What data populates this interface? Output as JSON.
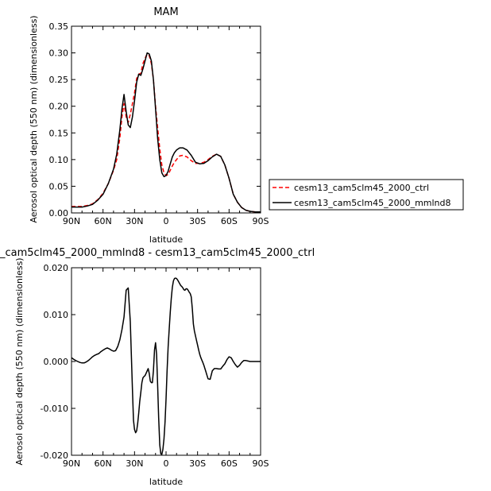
{
  "chart_data": [
    {
      "type": "line",
      "title": "MAM",
      "xlabel": "latitude",
      "ylabel": "Aerosol optical depth (550 nm) (dimensionless)",
      "xlim": [
        90,
        -90
      ],
      "ylim": [
        0,
        0.35
      ],
      "xticks": [
        90,
        60,
        30,
        0,
        -30,
        -60,
        -90
      ],
      "xtick_labels": [
        "90N",
        "60N",
        "30N",
        "0",
        "30S",
        "60S",
        "90S"
      ],
      "yticks": [
        0,
        0.05,
        0.1,
        0.15,
        0.2,
        0.25,
        0.3,
        0.35
      ],
      "ytick_labels": [
        "0.00",
        "0.05",
        "0.10",
        "0.15",
        "0.20",
        "0.25",
        "0.30",
        "0.35"
      ],
      "legend_position": "right",
      "series": [
        {
          "name": "cesm13_cam5clm45_2000_ctrl",
          "color": "#ff0000",
          "dash": "dashed",
          "x": [
            90,
            85,
            80,
            75,
            70,
            65,
            60,
            55,
            50,
            47,
            44,
            42,
            40,
            38,
            36,
            34,
            32,
            30,
            28,
            26,
            24,
            22,
            20,
            18,
            16,
            14,
            12,
            10,
            8,
            6,
            4,
            2,
            0,
            -2,
            -4,
            -6,
            -8,
            -10,
            -13,
            -16,
            -20,
            -24,
            -28,
            -32,
            -36,
            -40,
            -44,
            -48,
            -52,
            -56,
            -60,
            -64,
            -68,
            -72,
            -76,
            -80,
            -85,
            -90
          ],
          "y": [
            0.012,
            0.012,
            0.012,
            0.014,
            0.017,
            0.025,
            0.037,
            0.055,
            0.08,
            0.1,
            0.14,
            0.18,
            0.205,
            0.18,
            0.17,
            0.185,
            0.205,
            0.225,
            0.252,
            0.26,
            0.262,
            0.28,
            0.29,
            0.298,
            0.295,
            0.28,
            0.25,
            0.2,
            0.16,
            0.12,
            0.09,
            0.075,
            0.07,
            0.072,
            0.08,
            0.088,
            0.095,
            0.1,
            0.107,
            0.108,
            0.105,
            0.098,
            0.093,
            0.093,
            0.095,
            0.1,
            0.106,
            0.11,
            0.106,
            0.09,
            0.065,
            0.035,
            0.02,
            0.01,
            0.005,
            0.003,
            0.002,
            0.002
          ]
        },
        {
          "name": "cesm13_cam5clm45_2000_mmlnd8",
          "color": "#000000",
          "dash": "solid",
          "x": [
            90,
            85,
            80,
            75,
            70,
            65,
            60,
            55,
            50,
            47,
            44,
            42,
            40,
            38,
            36,
            34,
            32,
            30,
            28,
            26,
            24,
            22,
            20,
            18,
            16,
            14,
            12,
            10,
            8,
            6,
            4,
            2,
            0,
            -2,
            -4,
            -6,
            -8,
            -10,
            -13,
            -16,
            -20,
            -24,
            -28,
            -32,
            -36,
            -40,
            -44,
            -48,
            -52,
            -56,
            -60,
            -64,
            -68,
            -72,
            -76,
            -80,
            -85,
            -90
          ],
          "y": [
            0.011,
            0.011,
            0.011,
            0.013,
            0.016,
            0.024,
            0.035,
            0.055,
            0.082,
            0.11,
            0.155,
            0.195,
            0.222,
            0.19,
            0.165,
            0.16,
            0.18,
            0.21,
            0.245,
            0.26,
            0.258,
            0.27,
            0.285,
            0.3,
            0.298,
            0.285,
            0.25,
            0.195,
            0.14,
            0.1,
            0.075,
            0.068,
            0.07,
            0.078,
            0.092,
            0.105,
            0.113,
            0.118,
            0.122,
            0.122,
            0.118,
            0.108,
            0.095,
            0.092,
            0.093,
            0.098,
            0.105,
            0.11,
            0.106,
            0.09,
            0.065,
            0.035,
            0.02,
            0.01,
            0.005,
            0.003,
            0.002,
            0.002
          ]
        }
      ]
    },
    {
      "type": "line",
      "title": "_cam5clm45_2000_mmlnd8 - cesm13_cam5clm45_2000_ctrl",
      "xlabel": "latitude",
      "ylabel": "Aerosol optical depth (550 nm) (dimensionless)",
      "xlim": [
        90,
        -90
      ],
      "ylim": [
        -0.02,
        0.02
      ],
      "xticks": [
        90,
        60,
        30,
        0,
        -30,
        -60,
        -90
      ],
      "xtick_labels": [
        "90N",
        "60N",
        "30N",
        "0",
        "30S",
        "60S",
        "90S"
      ],
      "yticks": [
        -0.02,
        -0.01,
        0,
        0.01,
        0.02
      ],
      "ytick_labels": [
        "-0.020",
        "-0.010",
        "0.000",
        "0.010",
        "0.020"
      ],
      "series": [
        {
          "color": "#000000",
          "dash": "solid",
          "x": [
            90,
            88,
            86,
            84,
            82,
            80,
            78,
            76,
            74,
            72,
            70,
            68,
            66,
            64,
            62,
            60,
            58,
            56,
            54,
            52,
            50,
            48,
            46,
            44,
            42,
            40,
            38,
            36,
            34,
            33,
            32,
            31,
            30,
            29,
            28,
            27,
            26,
            25,
            24,
            23,
            22,
            21,
            20,
            19,
            18,
            17,
            16,
            15,
            14,
            13,
            12,
            11,
            10,
            9,
            8,
            7,
            6,
            5,
            4,
            3,
            2,
            1,
            0,
            -1,
            -2,
            -3,
            -4,
            -5,
            -6,
            -7,
            -8,
            -9,
            -10,
            -11,
            -12,
            -13,
            -14,
            -15,
            -16,
            -17,
            -18,
            -19,
            -20,
            -21,
            -22,
            -23,
            -24,
            -25,
            -26,
            -27,
            -28,
            -29,
            -30,
            -31,
            -32,
            -33,
            -34,
            -35,
            -36,
            -37,
            -38,
            -39,
            -40,
            -42,
            -44,
            -46,
            -48,
            -50,
            -52,
            -54,
            -56,
            -58,
            -60,
            -62,
            -64,
            -66,
            -68,
            -70,
            -72,
            -74,
            -76,
            -78,
            -80,
            -85,
            -90
          ],
          "y": [
            0.0008,
            0.0005,
            0.0002,
            0,
            -0.0002,
            -0.0003,
            -0.0003,
            -0.0001,
            0.0002,
            0.0006,
            0.001,
            0.0013,
            0.0015,
            0.0017,
            0.0021,
            0.0024,
            0.0027,
            0.0029,
            0.0027,
            0.0024,
            0.0022,
            0.0023,
            0.0032,
            0.0046,
            0.0068,
            0.0095,
            0.0152,
            0.0157,
            0.0085,
            0.001,
            -0.006,
            -0.0125,
            -0.0145,
            -0.0152,
            -0.0148,
            -0.0132,
            -0.011,
            -0.0085,
            -0.0065,
            -0.0045,
            -0.0035,
            -0.0032,
            -0.003,
            -0.0025,
            -0.002,
            -0.0015,
            -0.0025,
            -0.0042,
            -0.0045,
            -0.0045,
            -0.002,
            0.0025,
            0.004,
            0.0015,
            -0.005,
            -0.012,
            -0.0178,
            -0.0197,
            -0.0198,
            -0.0188,
            -0.0165,
            -0.013,
            -0.008,
            -0.002,
            0.003,
            0.007,
            0.0105,
            0.0135,
            0.0158,
            0.0172,
            0.0177,
            0.0178,
            0.0177,
            0.0174,
            0.017,
            0.0166,
            0.0162,
            0.016,
            0.0157,
            0.0153,
            0.0152,
            0.0155,
            0.0155,
            0.0152,
            0.0148,
            0.0145,
            0.0138,
            0.0112,
            0.008,
            0.0065,
            0.0055,
            0.0045,
            0.0035,
            0.0025,
            0.0016,
            0.0009,
            0.0003,
            -0.0002,
            -0.0008,
            -0.0015,
            -0.0022,
            -0.003,
            -0.0037,
            -0.0038,
            -0.002,
            -0.0015,
            -0.0015,
            -0.0016,
            -0.0016,
            -0.001,
            -0.0005,
            0.0004,
            0.001,
            0.0008,
            0,
            -0.0007,
            -0.0012,
            -0.0008,
            -0.0002,
            0.0002,
            0.0002,
            0.0001,
            0,
            0,
            0
          ]
        }
      ]
    }
  ]
}
